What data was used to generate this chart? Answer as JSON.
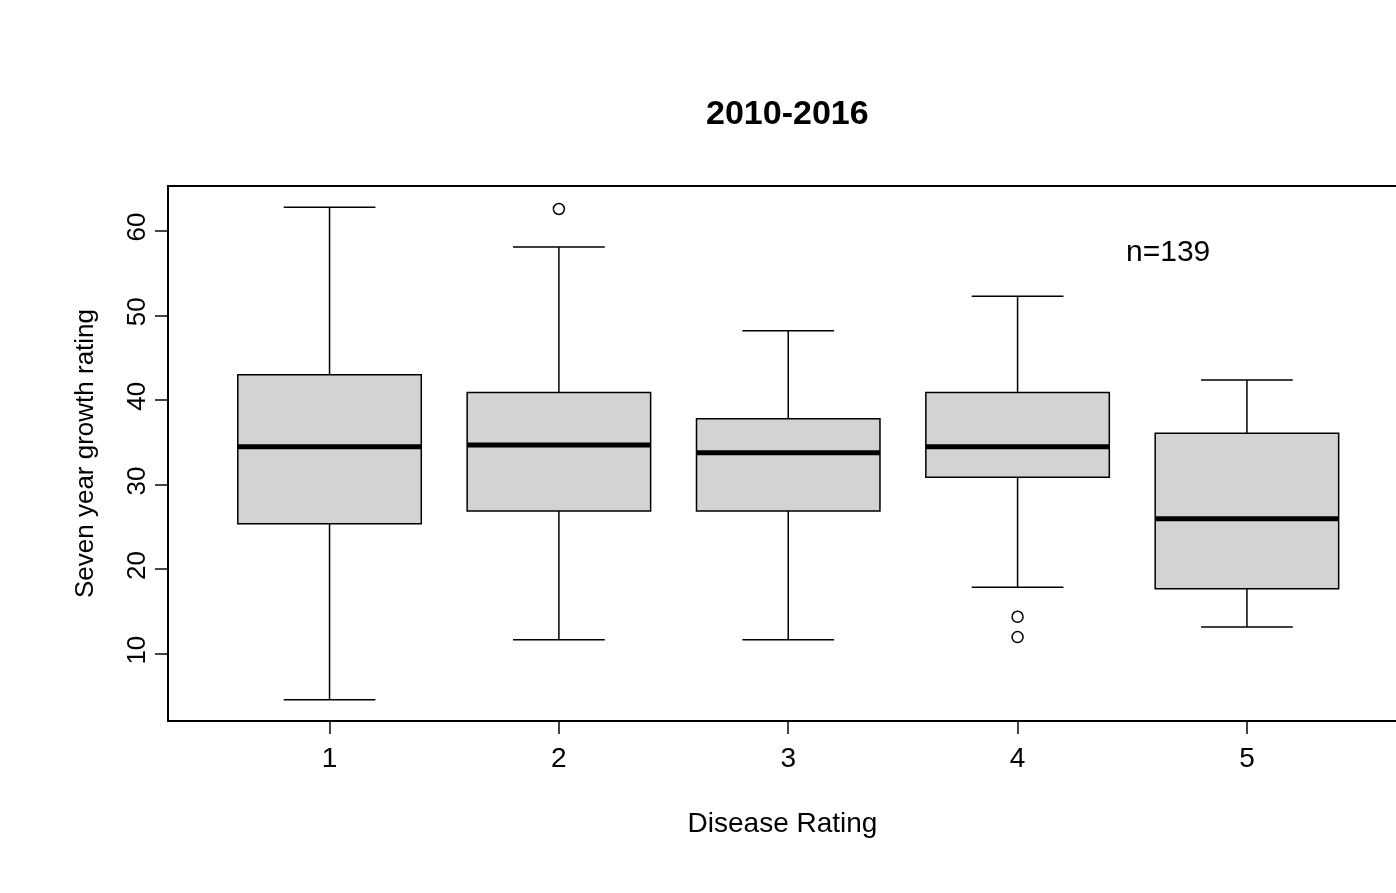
{
  "chart_data": {
    "type": "box",
    "title": "2010-2016",
    "xlabel": "Disease Rating",
    "ylabel": "Seven year growth rating",
    "categories": [
      "1",
      "2",
      "3",
      "4",
      "5"
    ],
    "boxes": [
      {
        "low": 4.6,
        "q1": 25.4,
        "median": 34.5,
        "q3": 43.0,
        "high": 62.8
      },
      {
        "low": 11.7,
        "q1": 26.9,
        "median": 34.7,
        "q3": 40.9,
        "high": 58.1,
        "outliers": [
          62.6
        ]
      },
      {
        "low": 11.7,
        "q1": 26.9,
        "median": 33.8,
        "q3": 37.8,
        "high": 48.2
      },
      {
        "low": 17.9,
        "q1": 30.9,
        "median": 34.5,
        "q3": 40.9,
        "high": 52.3,
        "outliers": [
          14.4,
          12.0
        ]
      },
      {
        "low": 13.2,
        "q1": 17.7,
        "median": 26.0,
        "q3": 36.1,
        "high": 42.4
      }
    ],
    "color": "#d3d3d3",
    "ylim": [
      2.2,
      65.2
    ],
    "yticks": [
      10,
      20,
      30,
      40,
      50,
      60
    ],
    "grid": false,
    "annotations": [
      "n=139"
    ]
  }
}
